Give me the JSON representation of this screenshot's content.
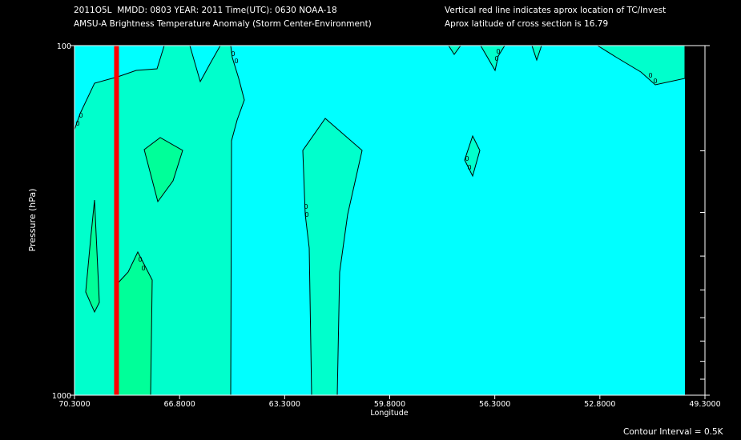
{
  "header": {
    "line1_left": "2011O5L  MMDD: 0803 YEAR: 2011 Time(UTC): 0630 NOAA-18",
    "line2_left": "AMSU-A Brightness Temperature Anomaly (Storm Center-Environment)",
    "line1_right": "Vertical red line indicates aprox location of TC/Invest",
    "line2_right": "Aprox latitude of cross section is 16.79"
  },
  "footer": {
    "contour_interval": "Contour Interval = 0.5K"
  },
  "chart_data": {
    "type": "contour",
    "xlabel": "Longitude",
    "ylabel": "Pressure (hPa)",
    "x_axis": {
      "direction": "west-positive, decreasing to the right",
      "range": [
        70.3,
        49.3
      ],
      "tick_labels": [
        "70.3000",
        "66.8000",
        "63.3000",
        "59.8000",
        "56.3000",
        "52.8000",
        "49.3000"
      ],
      "tick_values": [
        70.3,
        66.8,
        63.3,
        59.8,
        56.3,
        52.8,
        49.3
      ]
    },
    "y_axis": {
      "scale": "log",
      "range": [
        1000,
        100
      ],
      "tick_labels": [
        "100",
        "1000"
      ],
      "tick_values": [
        100,
        1000
      ],
      "minor_ticks": [
        200,
        300,
        400,
        500,
        600,
        700,
        800,
        900
      ]
    },
    "storm_center_longitude": 68.9,
    "contour_interval_K": 0.5,
    "contour_labels": [
      "0",
      "0",
      "0",
      "0",
      "0",
      "0",
      "0",
      "0",
      "0",
      "0",
      "0",
      "0",
      "0",
      "0"
    ],
    "colors": {
      "background_fill": "#00ffff",
      "level_0_fill": "#00ffcc",
      "level_0.5_fill": "#00ff99",
      "storm_line": "#ff0000",
      "no_data_band": "#000000"
    }
  }
}
